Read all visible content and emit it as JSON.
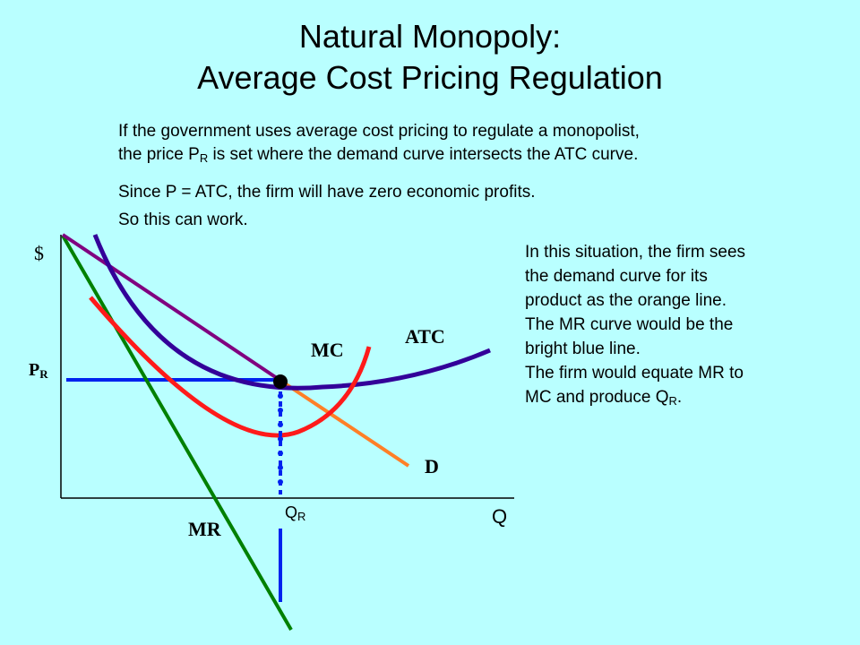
{
  "title": {
    "line1": "Natural Monopoly:",
    "line2": "Average Cost Pricing Regulation"
  },
  "intro": {
    "line1": "If the government uses average cost pricing to regulate a monopolist,",
    "line2_pre": "the price P",
    "line2_sub": "R",
    "line2_post": " is set where the demand curve intersects the ATC curve.",
    "line3": "Since P = ATC, the firm will have zero economic profits.",
    "line4": "So this can work."
  },
  "side_note": {
    "line1": "In this situation, the firm sees",
    "line2": "the demand curve for its",
    "line3": "product as the orange line.",
    "line4": "The MR curve would be the",
    "line5": "bright blue line.",
    "line6": "The firm would equate MR to",
    "line7_pre": "MC and produce Q",
    "line7_sub": "R",
    "line7_post": "."
  },
  "graph": {
    "y_axis_label": "$",
    "x_axis_label": "Q",
    "price_label_main": "P",
    "price_label_sub": "R",
    "quantity_label_main": "Q",
    "quantity_label_sub": "R",
    "curve_labels": {
      "mc": "MC",
      "atc": "ATC",
      "demand": "D",
      "mr": "MR"
    }
  },
  "colors": {
    "background": "#b9ffff",
    "demand_upper": "#800080",
    "demand_lower": "#ff7f27",
    "marginal_revenue": "#008000",
    "marginal_cost": "#ff1a1a",
    "average_total_cost": "#330099",
    "guide_lines": "#0022ee"
  }
}
